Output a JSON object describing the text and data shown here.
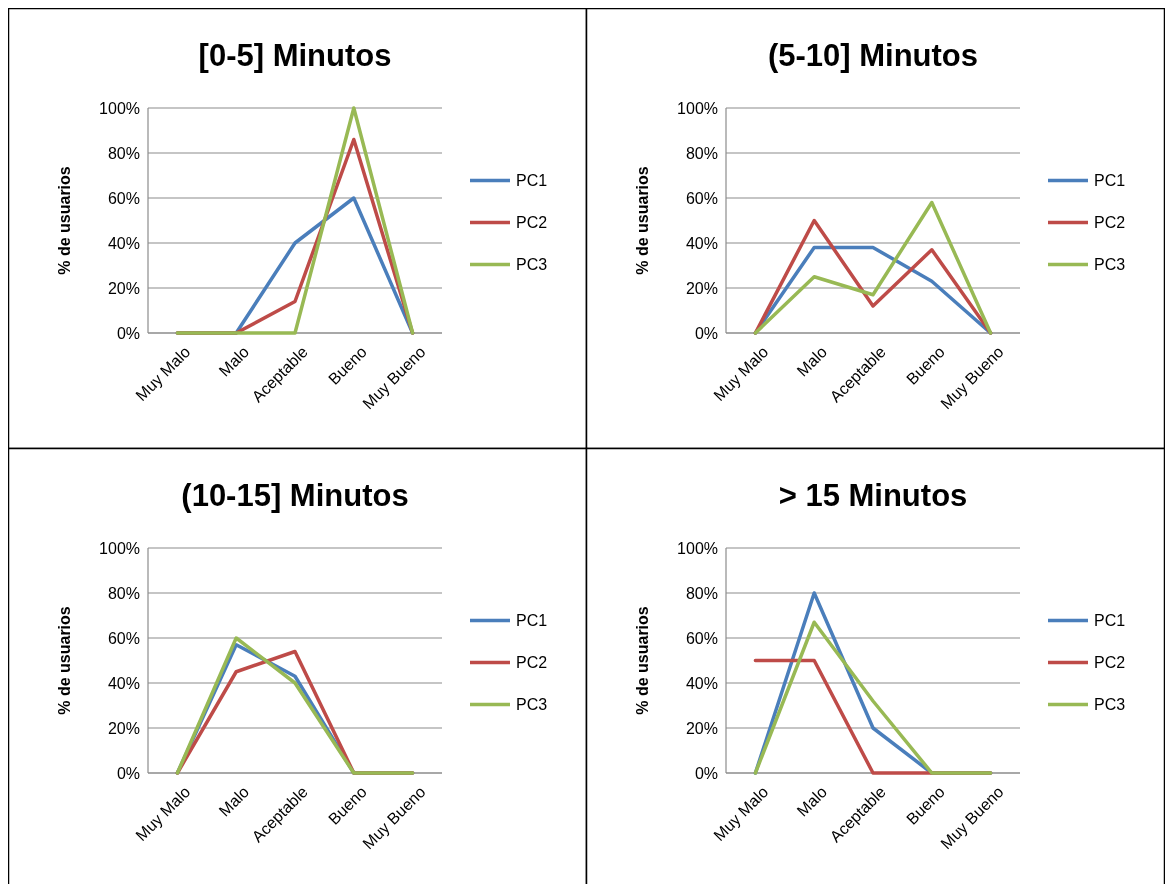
{
  "chart_data": [
    {
      "type": "line",
      "title": "[0-5] Minutos",
      "ylabel": "% de usuarios",
      "categories": [
        "Muy Malo",
        "Malo",
        "Aceptable",
        "Bueno",
        "Muy Bueno"
      ],
      "ylim": [
        0,
        100
      ],
      "yticks": [
        {
          "value": 0,
          "label": "0%"
        },
        {
          "value": 20,
          "label": "20%"
        },
        {
          "value": 40,
          "label": "40%"
        },
        {
          "value": 60,
          "label": "60%"
        },
        {
          "value": 80,
          "label": "80%"
        },
        {
          "value": 100,
          "label": "100%"
        }
      ],
      "grid": "y",
      "legend": "right",
      "marker": "none",
      "series": [
        {
          "name": "PC1",
          "color": "#4a7ebb",
          "values": [
            0,
            0,
            40,
            60,
            0
          ]
        },
        {
          "name": "PC2",
          "color": "#be4b48",
          "values": [
            0,
            0,
            14,
            86,
            0
          ]
        },
        {
          "name": "PC3",
          "color": "#98b954",
          "values": [
            0,
            0,
            0,
            100,
            0
          ]
        }
      ]
    },
    {
      "type": "line",
      "title": "(5-10] Minutos",
      "ylabel": "% de usuarios",
      "categories": [
        "Muy Malo",
        "Malo",
        "Aceptable",
        "Bueno",
        "Muy Bueno"
      ],
      "ylim": [
        0,
        100
      ],
      "yticks": [
        {
          "value": 0,
          "label": "0%"
        },
        {
          "value": 20,
          "label": "20%"
        },
        {
          "value": 40,
          "label": "40%"
        },
        {
          "value": 60,
          "label": "60%"
        },
        {
          "value": 80,
          "label": "80%"
        },
        {
          "value": 100,
          "label": "100%"
        }
      ],
      "grid": "y",
      "legend": "right",
      "marker": "none",
      "series": [
        {
          "name": "PC1",
          "color": "#4a7ebb",
          "values": [
            0,
            38,
            38,
            23,
            0
          ]
        },
        {
          "name": "PC2",
          "color": "#be4b48",
          "values": [
            0,
            50,
            12,
            37,
            0
          ]
        },
        {
          "name": "PC3",
          "color": "#98b954",
          "values": [
            0,
            25,
            17,
            58,
            0
          ]
        }
      ]
    },
    {
      "type": "line",
      "title": "(10-15] Minutos",
      "ylabel": "% de usuarios",
      "categories": [
        "Muy Malo",
        "Malo",
        "Aceptable",
        "Bueno",
        "Muy Bueno"
      ],
      "ylim": [
        0,
        100
      ],
      "yticks": [
        {
          "value": 0,
          "label": "0%"
        },
        {
          "value": 20,
          "label": "20%"
        },
        {
          "value": 40,
          "label": "40%"
        },
        {
          "value": 60,
          "label": "60%"
        },
        {
          "value": 80,
          "label": "80%"
        },
        {
          "value": 100,
          "label": "100%"
        }
      ],
      "grid": "y",
      "legend": "right",
      "marker": "none",
      "series": [
        {
          "name": "PC1",
          "color": "#4a7ebb",
          "values": [
            0,
            57,
            43,
            0,
            0
          ]
        },
        {
          "name": "PC2",
          "color": "#be4b48",
          "values": [
            0,
            45,
            54,
            0,
            0
          ]
        },
        {
          "name": "PC3",
          "color": "#98b954",
          "values": [
            0,
            60,
            40,
            0,
            0
          ]
        }
      ]
    },
    {
      "type": "line",
      "title": "> 15 Minutos",
      "ylabel": "% de usuarios",
      "categories": [
        "Muy Malo",
        "Malo",
        "Aceptable",
        "Bueno",
        "Muy Bueno"
      ],
      "ylim": [
        0,
        100
      ],
      "yticks": [
        {
          "value": 0,
          "label": "0%"
        },
        {
          "value": 20,
          "label": "20%"
        },
        {
          "value": 40,
          "label": "40%"
        },
        {
          "value": 60,
          "label": "60%"
        },
        {
          "value": 80,
          "label": "80%"
        },
        {
          "value": 100,
          "label": "100%"
        }
      ],
      "grid": "y",
      "legend": "right",
      "marker": "none",
      "series": [
        {
          "name": "PC1",
          "color": "#4a7ebb",
          "values": [
            0,
            80,
            20,
            0,
            0
          ]
        },
        {
          "name": "PC2",
          "color": "#be4b48",
          "values": [
            50,
            50,
            0,
            0,
            0
          ]
        },
        {
          "name": "PC3",
          "color": "#98b954",
          "values": [
            0,
            67,
            32,
            0,
            0
          ]
        }
      ]
    }
  ]
}
